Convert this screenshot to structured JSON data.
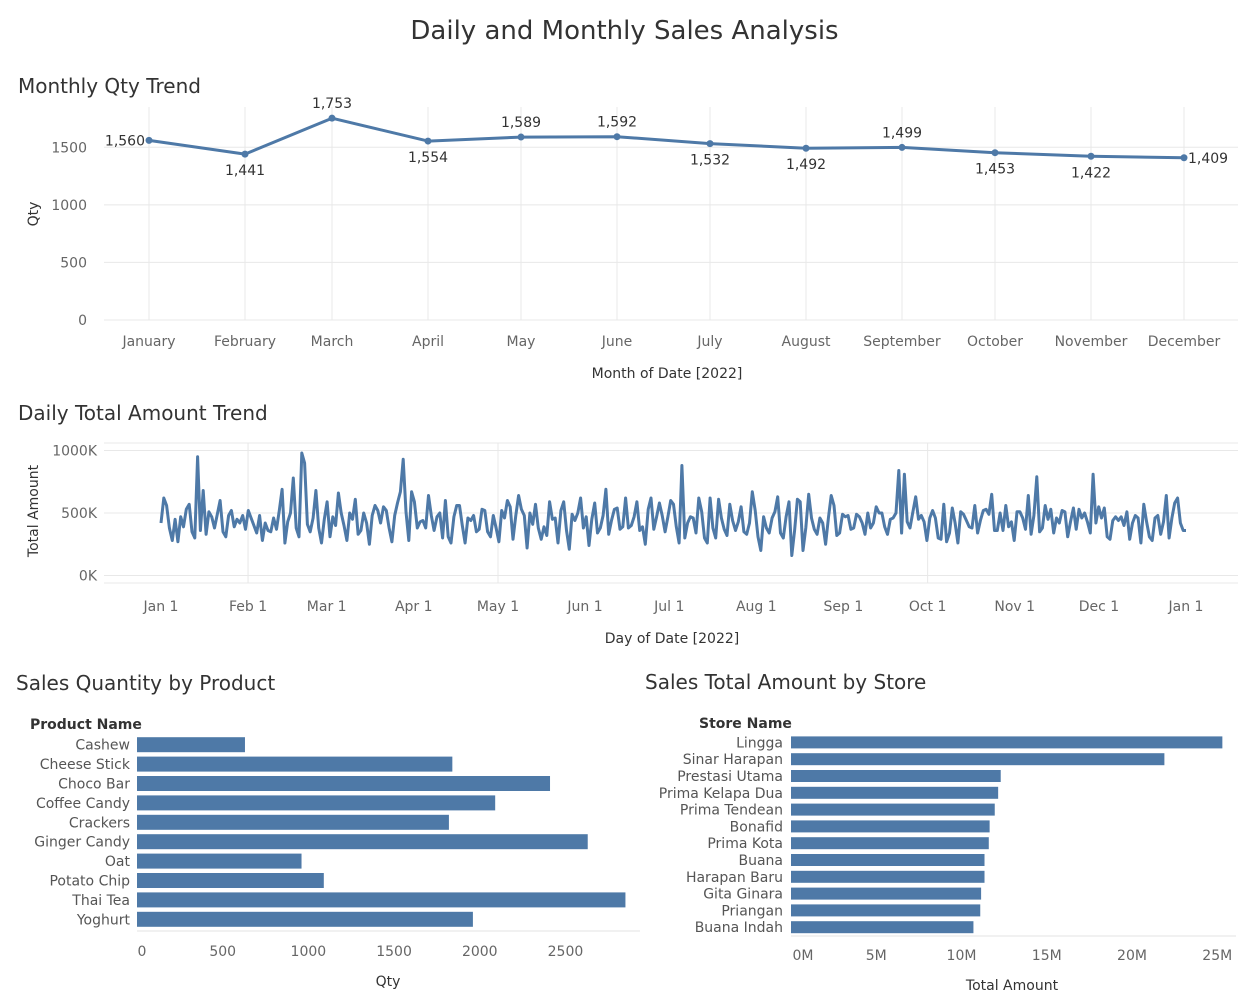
{
  "page": {
    "title": "Daily and Monthly Sales Analysis"
  },
  "colors": {
    "bar": "#4e79a7",
    "line": "#4e79a7",
    "grid": "#e8e8e8"
  },
  "chart_data": [
    {
      "id": "monthly",
      "type": "line",
      "title": "Monthly Qty Trend",
      "xlabel": "Month of Date [2022]",
      "ylabel": "Qty",
      "categories": [
        "January",
        "February",
        "March",
        "April",
        "May",
        "June",
        "July",
        "August",
        "September",
        "October",
        "November",
        "December"
      ],
      "values": [
        1560,
        1441,
        1753,
        1554,
        1589,
        1592,
        1532,
        1492,
        1499,
        1453,
        1422,
        1409
      ],
      "value_labels": [
        "1,560",
        "1,441",
        "1,753",
        "1,554",
        "1,589",
        "1,592",
        "1,532",
        "1,492",
        "1,499",
        "1,453",
        "1,422",
        "1,409"
      ],
      "yticks": [
        0,
        500,
        1000,
        1500
      ],
      "ytick_labels": [
        "0",
        "500",
        "1000",
        "1500"
      ],
      "ylim": [
        0,
        1850
      ],
      "grid": true
    },
    {
      "id": "daily",
      "type": "line",
      "title": "Daily Total Amount Trend",
      "xlabel": "Day of Date [2022]",
      "ylabel": "Total Amount",
      "x_start": "2022-01-01",
      "x_end": "2023-01-01",
      "xticks": [
        "2022-01-01",
        "2022-02-01",
        "2022-03-01",
        "2022-04-01",
        "2022-05-01",
        "2022-06-01",
        "2022-07-01",
        "2022-08-01",
        "2022-09-01",
        "2022-10-01",
        "2022-11-01",
        "2022-12-01",
        "2023-01-01"
      ],
      "xtick_labels": [
        "Jan 1",
        "Feb 1",
        "Mar 1",
        "Apr 1",
        "May 1",
        "Jun 1",
        "Jul 1",
        "Aug 1",
        "Sep 1",
        "Oct 1",
        "Nov 1",
        "Dec 1",
        "Jan 1"
      ],
      "yticks": [
        0,
        500000,
        1000000
      ],
      "ytick_labels": [
        "0K",
        "500K",
        "1000K"
      ],
      "ylim": [
        -60000,
        1060000
      ],
      "values": [
        420000,
        620000,
        560000,
        380000,
        280000,
        450000,
        270000,
        470000,
        390000,
        530000,
        570000,
        350000,
        300000,
        950000,
        360000,
        680000,
        330000,
        510000,
        470000,
        380000,
        490000,
        600000,
        350000,
        310000,
        480000,
        520000,
        390000,
        450000,
        420000,
        480000,
        370000,
        520000,
        460000,
        400000,
        340000,
        480000,
        280000,
        420000,
        360000,
        350000,
        460000,
        370000,
        520000,
        690000,
        260000,
        430000,
        500000,
        780000,
        380000,
        310000,
        980000,
        900000,
        410000,
        350000,
        460000,
        680000,
        380000,
        260000,
        450000,
        590000,
        310000,
        470000,
        400000,
        660000,
        500000,
        400000,
        280000,
        500000,
        450000,
        610000,
        330000,
        360000,
        500000,
        420000,
        250000,
        480000,
        560000,
        520000,
        420000,
        550000,
        520000,
        380000,
        270000,
        480000,
        580000,
        670000,
        930000,
        510000,
        280000,
        670000,
        590000,
        380000,
        430000,
        440000,
        380000,
        640000,
        480000,
        360000,
        470000,
        500000,
        300000,
        600000,
        310000,
        260000,
        470000,
        560000,
        560000,
        400000,
        260000,
        460000,
        440000,
        480000,
        350000,
        370000,
        530000,
        520000,
        350000,
        310000,
        480000,
        380000,
        270000,
        520000,
        460000,
        600000,
        550000,
        290000,
        480000,
        640000,
        530000,
        480000,
        220000,
        500000,
        410000,
        570000,
        380000,
        290000,
        390000,
        320000,
        590000,
        450000,
        460000,
        260000,
        520000,
        590000,
        360000,
        210000,
        490000,
        440000,
        500000,
        620000,
        380000,
        470000,
        240000,
        450000,
        580000,
        340000,
        380000,
        480000,
        690000,
        330000,
        440000,
        530000,
        540000,
        370000,
        390000,
        620000,
        380000,
        400000,
        470000,
        590000,
        360000,
        390000,
        250000,
        530000,
        620000,
        370000,
        470000,
        580000,
        480000,
        350000,
        470000,
        600000,
        570000,
        390000,
        260000,
        880000,
        300000,
        420000,
        470000,
        460000,
        340000,
        620000,
        510000,
        300000,
        260000,
        620000,
        380000,
        300000,
        610000,
        460000,
        370000,
        320000,
        570000,
        440000,
        360000,
        430000,
        550000,
        350000,
        330000,
        420000,
        670000,
        520000,
        310000,
        200000,
        470000,
        380000,
        340000,
        460000,
        510000,
        630000,
        340000,
        300000,
        470000,
        590000,
        160000,
        360000,
        610000,
        590000,
        200000,
        380000,
        650000,
        460000,
        370000,
        330000,
        460000,
        420000,
        250000,
        460000,
        640000,
        560000,
        320000,
        340000,
        490000,
        470000,
        480000,
        370000,
        380000,
        490000,
        470000,
        420000,
        330000,
        500000,
        380000,
        420000,
        550000,
        500000,
        500000,
        390000,
        330000,
        450000,
        460000,
        500000,
        840000,
        340000,
        810000,
        430000,
        380000,
        510000,
        630000,
        450000,
        480000,
        430000,
        280000,
        460000,
        520000,
        460000,
        300000,
        290000,
        570000,
        270000,
        340000,
        540000,
        420000,
        260000,
        510000,
        490000,
        440000,
        390000,
        380000,
        560000,
        340000,
        440000,
        520000,
        530000,
        490000,
        650000,
        360000,
        360000,
        500000,
        360000,
        560000,
        390000,
        430000,
        280000,
        510000,
        510000,
        460000,
        370000,
        640000,
        330000,
        480000,
        790000,
        350000,
        380000,
        560000,
        450000,
        530000,
        340000,
        460000,
        420000,
        520000,
        510000,
        310000,
        430000,
        540000,
        370000,
        530000,
        460000,
        500000,
        430000,
        340000,
        810000,
        420000,
        550000,
        460000,
        540000,
        310000,
        290000,
        440000,
        470000,
        440000,
        470000,
        400000,
        510000,
        290000,
        420000,
        480000,
        460000,
        260000,
        570000,
        430000,
        310000,
        280000,
        460000,
        480000,
        330000,
        430000,
        640000,
        300000,
        460000,
        580000,
        620000,
        420000,
        360000,
        360000
      ]
    },
    {
      "id": "product",
      "type": "bar",
      "orientation": "horizontal",
      "title": "Sales Quantity by Product",
      "category_header": "Product Name",
      "xlabel": "Qty",
      "categories": [
        "Cashew",
        "Cheese Stick",
        "Choco Bar",
        "Coffee Candy",
        "Crackers",
        "Ginger Candy",
        "Oat",
        "Potato Chip",
        "Thai Tea",
        "Yoghurt"
      ],
      "values": [
        630,
        1840,
        2410,
        2090,
        1820,
        2630,
        960,
        1090,
        2850,
        1960
      ],
      "xticks": [
        0,
        500,
        1000,
        1500,
        2000,
        2500
      ],
      "xtick_labels": [
        "0",
        "500",
        "1000",
        "1500",
        "2000",
        "2500"
      ],
      "xlim": [
        0,
        2935
      ]
    },
    {
      "id": "store",
      "type": "bar",
      "orientation": "horizontal",
      "title": "Sales Total Amount by Store",
      "category_header": "Store Name",
      "xlabel": "Total Amount",
      "categories": [
        "Lingga",
        "Sinar Harapan",
        "Prestasi Utama",
        "Prima Kelapa Dua",
        "Prima Tendean",
        "Bonafid",
        "Prima Kota",
        "Buana",
        "Harapan Baru",
        "Gita Ginara",
        "Priangan",
        "Buana Indah"
      ],
      "values": [
        25300000,
        21900000,
        12300000,
        12150000,
        11950000,
        11650000,
        11600000,
        11350000,
        11350000,
        11150000,
        11100000,
        10700000
      ],
      "xticks": [
        0,
        5000000,
        10000000,
        15000000,
        20000000,
        25000000
      ],
      "xtick_labels": [
        "0M",
        "5M",
        "10M",
        "15M",
        "20M",
        "25M"
      ],
      "xlim": [
        0,
        26100000
      ]
    }
  ]
}
